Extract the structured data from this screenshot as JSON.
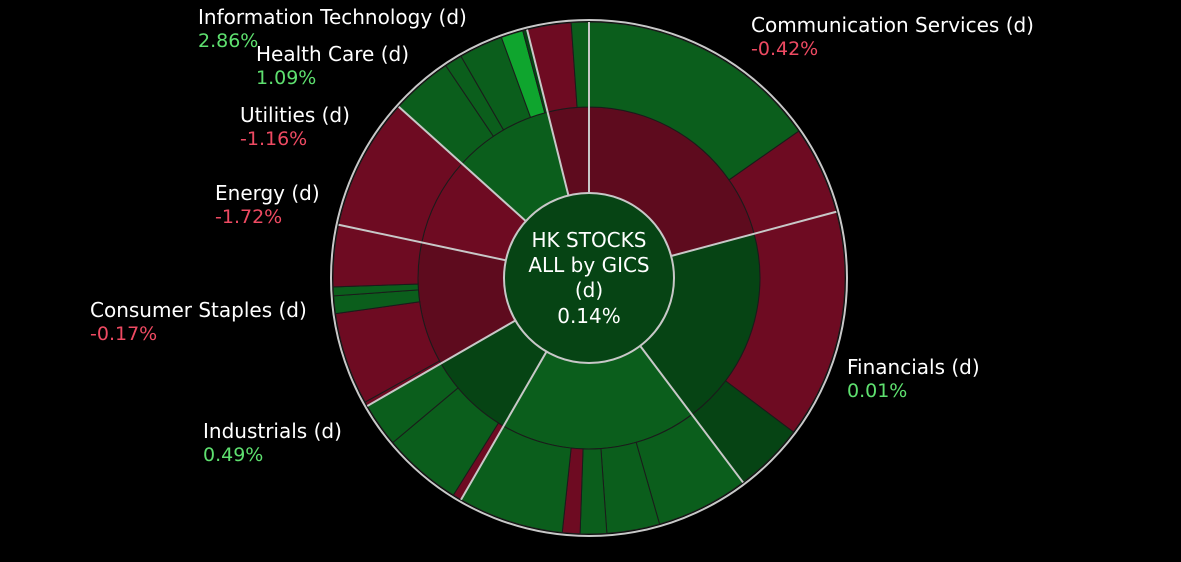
{
  "chart_data": {
    "type": "sunburst",
    "center": {
      "title_lines": [
        "HK STOCKS",
        "ALL by GICS",
        "(d)"
      ],
      "value": "0.14%"
    },
    "sectors": [
      {
        "name": "Communication Services (d)",
        "change": "-0.42%",
        "direction": "down"
      },
      {
        "name": "Financials (d)",
        "change": "0.01%",
        "direction": "up"
      },
      {
        "name": "Industrials (d)",
        "change": "0.49%",
        "direction": "up"
      },
      {
        "name": "Consumer Staples (d)",
        "change": "-0.17%",
        "direction": "down"
      },
      {
        "name": "Energy (d)",
        "change": "-1.72%",
        "direction": "down"
      },
      {
        "name": "Utilities (d)",
        "change": "-1.16%",
        "direction": "down"
      },
      {
        "name": "Health Care (d)",
        "change": "1.09%",
        "direction": "up"
      },
      {
        "name": "Information Technology (d)",
        "change": "2.86%",
        "direction": "up"
      }
    ],
    "colors": {
      "dark_red": "#5e0b1e",
      "red": "#6e0b22",
      "dark_green": "#064414",
      "green": "#0b5e1c",
      "bright_green": "#0fa52e",
      "separator": "#c8c8c8"
    }
  }
}
